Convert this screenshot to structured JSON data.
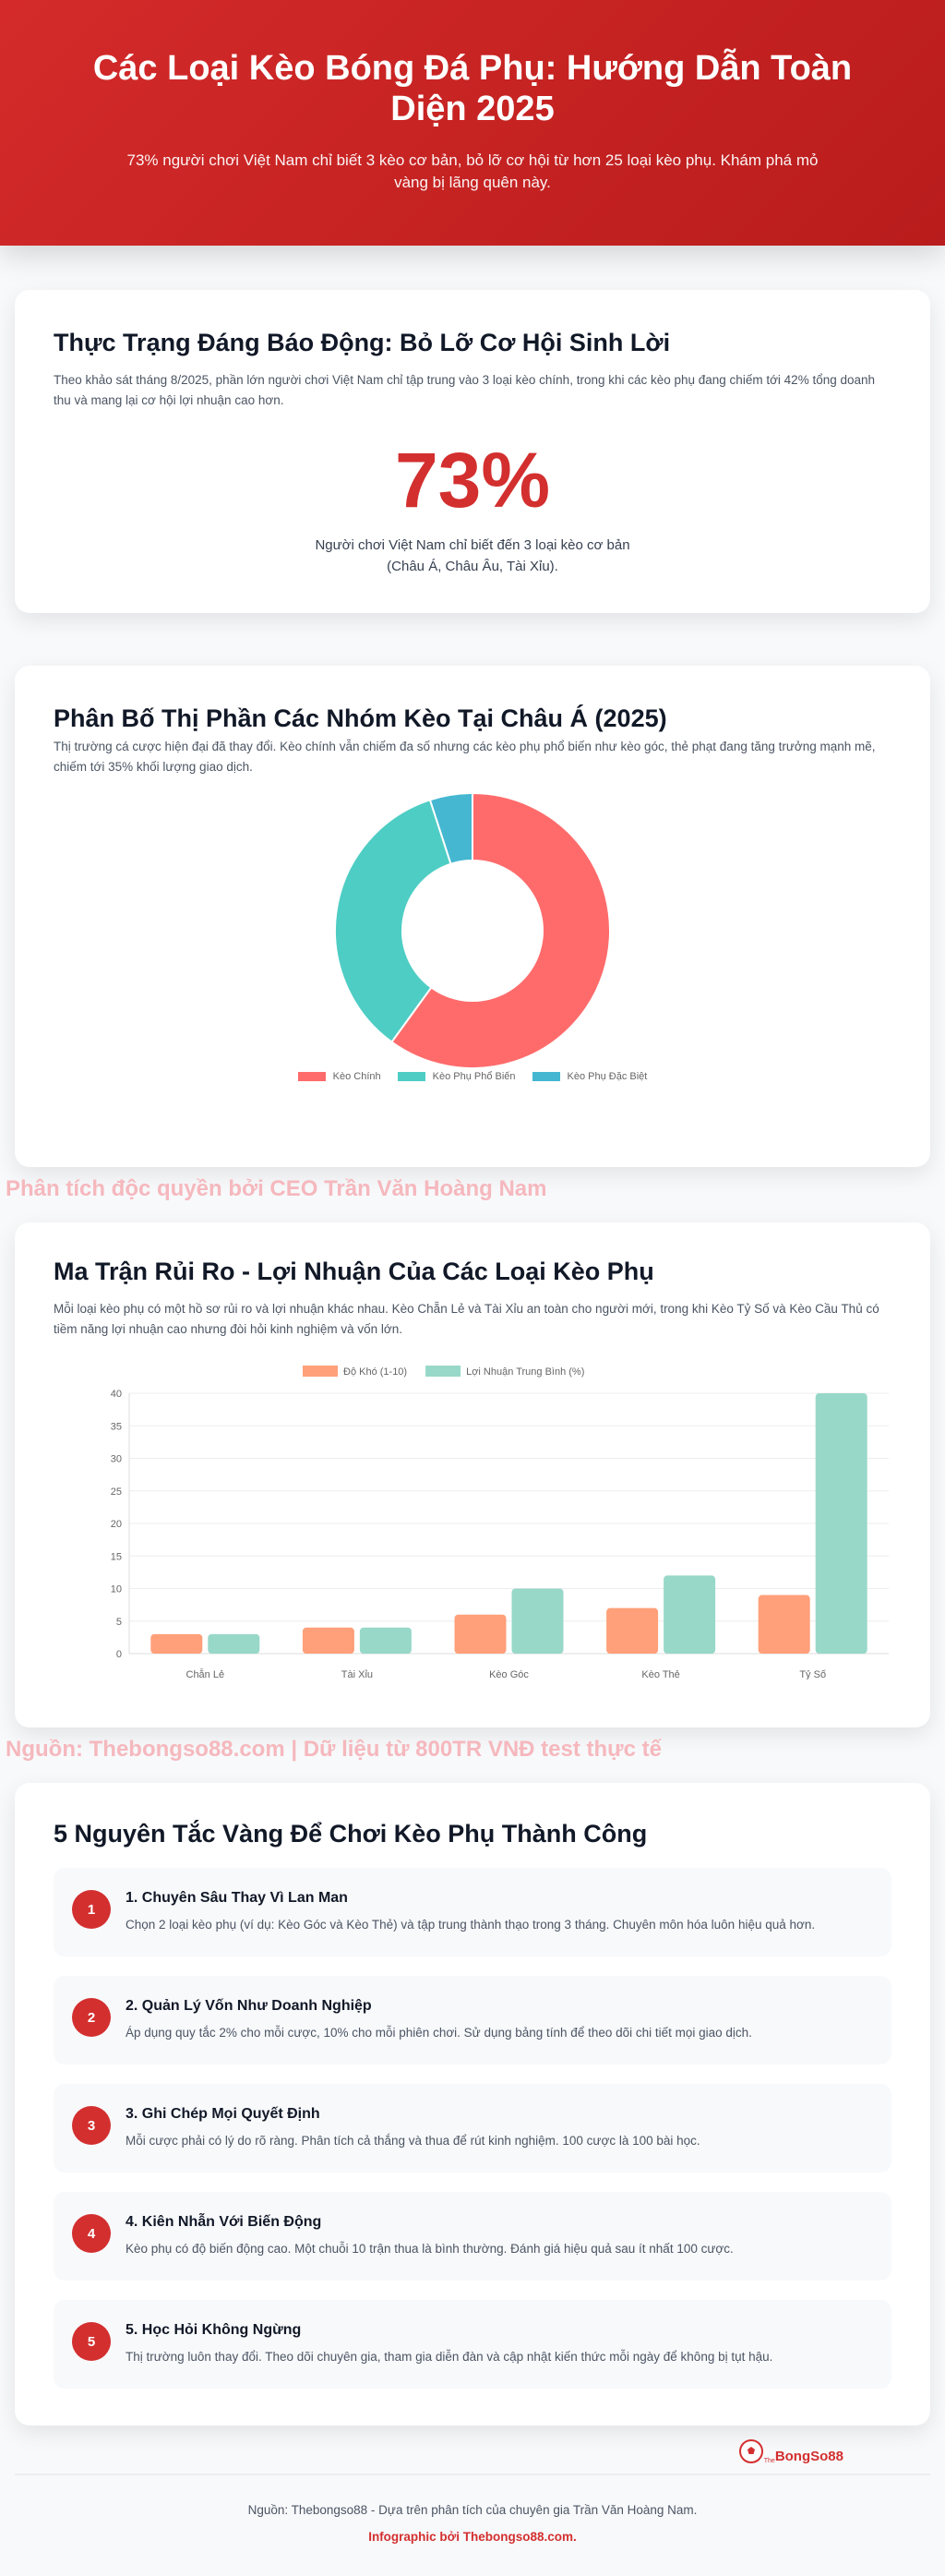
{
  "hero": {
    "title": "Các Loại Kèo Bóng Đá Phụ: Hướng Dẫn Toàn Diện 2025",
    "subtitle": "73% người chơi Việt Nam chỉ biết 3 kèo cơ bản, bỏ lỡ cơ hội từ hơn 25 loại kèo phụ. Khám phá mỏ vàng bị lãng quên này."
  },
  "stat": {
    "title": "Thực Trạng Đáng Báo Động: Bỏ Lỡ Cơ Hội Sinh Lời",
    "desc": "Theo khảo sát tháng 8/2025, phần lớn người chơi Việt Nam chỉ tập trung vào 3 loại kèo chính, trong khi các kèo phụ đang chiếm tới 42% tổng doanh thu và mang lại cơ hội lợi nhuận cao hơn.",
    "value": "73%",
    "caption1": "Người chơi Việt Nam chỉ biết đến 3 loại kèo cơ bản",
    "caption2": "(Châu Á, Châu Âu, Tài Xỉu)."
  },
  "donut": {
    "title": "Phân Bố Thị Phần Các Nhóm Kèo Tại Châu Á (2025)",
    "desc": "Thị trường cá cược hiện đại đã thay đổi. Kèo chính vẫn chiếm đa số nhưng các kèo phụ phổ biến như kèo góc, thẻ phạt đang tăng trưởng mạnh mẽ, chiếm tới 35% khối lượng giao dịch."
  },
  "watermark1": "Phân tích độc quyền bởi CEO Trần Văn Hoàng Nam",
  "bars": {
    "title": "Ma Trận Rủi Ro - Lợi Nhuận Của Các Loại Kèo Phụ",
    "desc": "Mỗi loại kèo phụ có một hồ sơ rủi ro và lợi nhuận khác nhau. Kèo Chẵn Lẻ và Tài Xỉu an toàn cho người mới, trong khi Kèo Tỷ Số và Kèo Cầu Thủ có tiềm năng lợi nhuận cao nhưng đòi hỏi kinh nghiệm và vốn lớn."
  },
  "watermark2": "Nguồn: Thebongso88.com | Dữ liệu từ 800TR VNĐ test thực tế",
  "chart_data": [
    {
      "type": "pie",
      "donut": true,
      "labels": [
        "Kèo Chính",
        "Kèo Phụ Phổ Biến",
        "Kèo Phụ Đặc Biệt"
      ],
      "values": [
        60,
        35,
        5
      ],
      "colors": [
        "#ff6b6b",
        "#4ecdc4",
        "#45b7d1"
      ],
      "legend": "bottom"
    },
    {
      "type": "bar",
      "categories": [
        "Chẵn Lẻ",
        "Tài Xỉu",
        "Kèo Góc",
        "Kèo Thẻ",
        "Tỷ Số"
      ],
      "series": [
        {
          "name": "Độ Khó (1-10)",
          "values": [
            3,
            4,
            6,
            7,
            9
          ],
          "color": "#ffa07a"
        },
        {
          "name": "Lợi Nhuận Trung Bình (%)",
          "values": [
            3,
            4,
            10,
            12,
            40
          ],
          "color": "#98d8c8"
        }
      ],
      "ylim": [
        0,
        40
      ],
      "yticks": [
        0,
        5,
        10,
        15,
        20,
        25,
        30,
        35,
        40
      ],
      "grid": true,
      "legend": "top"
    }
  ],
  "principles": {
    "title": "5 Nguyên Tắc Vàng Để Chơi Kèo Phụ Thành Công",
    "items": [
      {
        "n": "1",
        "title": "1. Chuyên Sâu Thay Vì Lan Man",
        "desc": "Chọn 2 loại kèo phụ (ví dụ: Kèo Góc và Kèo Thẻ) và tập trung thành thạo trong 3 tháng. Chuyên môn hóa luôn hiệu quả hơn."
      },
      {
        "n": "2",
        "title": "2. Quản Lý Vốn Như Doanh Nghiệp",
        "desc": "Áp dụng quy tắc 2% cho mỗi cược, 10% cho mỗi phiên chơi. Sử dụng bảng tính để theo dõi chi tiết mọi giao dịch."
      },
      {
        "n": "3",
        "title": "3. Ghi Chép Mọi Quyết Định",
        "desc": "Mỗi cược phải có lý do rõ ràng. Phân tích cả thắng và thua để rút kinh nghiệm. 100 cược là 100 bài học."
      },
      {
        "n": "4",
        "title": "4. Kiên Nhẫn Với Biến Động",
        "desc": "Kèo phụ có độ biến động cao. Một chuỗi 10 trận thua là bình thường. Đánh giá hiệu quả sau ít nhất 100 cược."
      },
      {
        "n": "5",
        "title": "5. Học Hỏi Không Ngừng",
        "desc": "Thị trường luôn thay đổi. Theo dõi chuyên gia, tham gia diễn đàn và cập nhật kiến thức mỗi ngày để không bị tụt hậu."
      }
    ]
  },
  "logo": {
    "text": "BongSo88",
    "prefix": "The"
  },
  "footer": {
    "source": "Nguồn: Thebongso88 - Dựa trên phân tích của chuyên gia Trần Văn Hoàng Nam.",
    "credit": "Infographic bởi Thebongso88.com."
  }
}
